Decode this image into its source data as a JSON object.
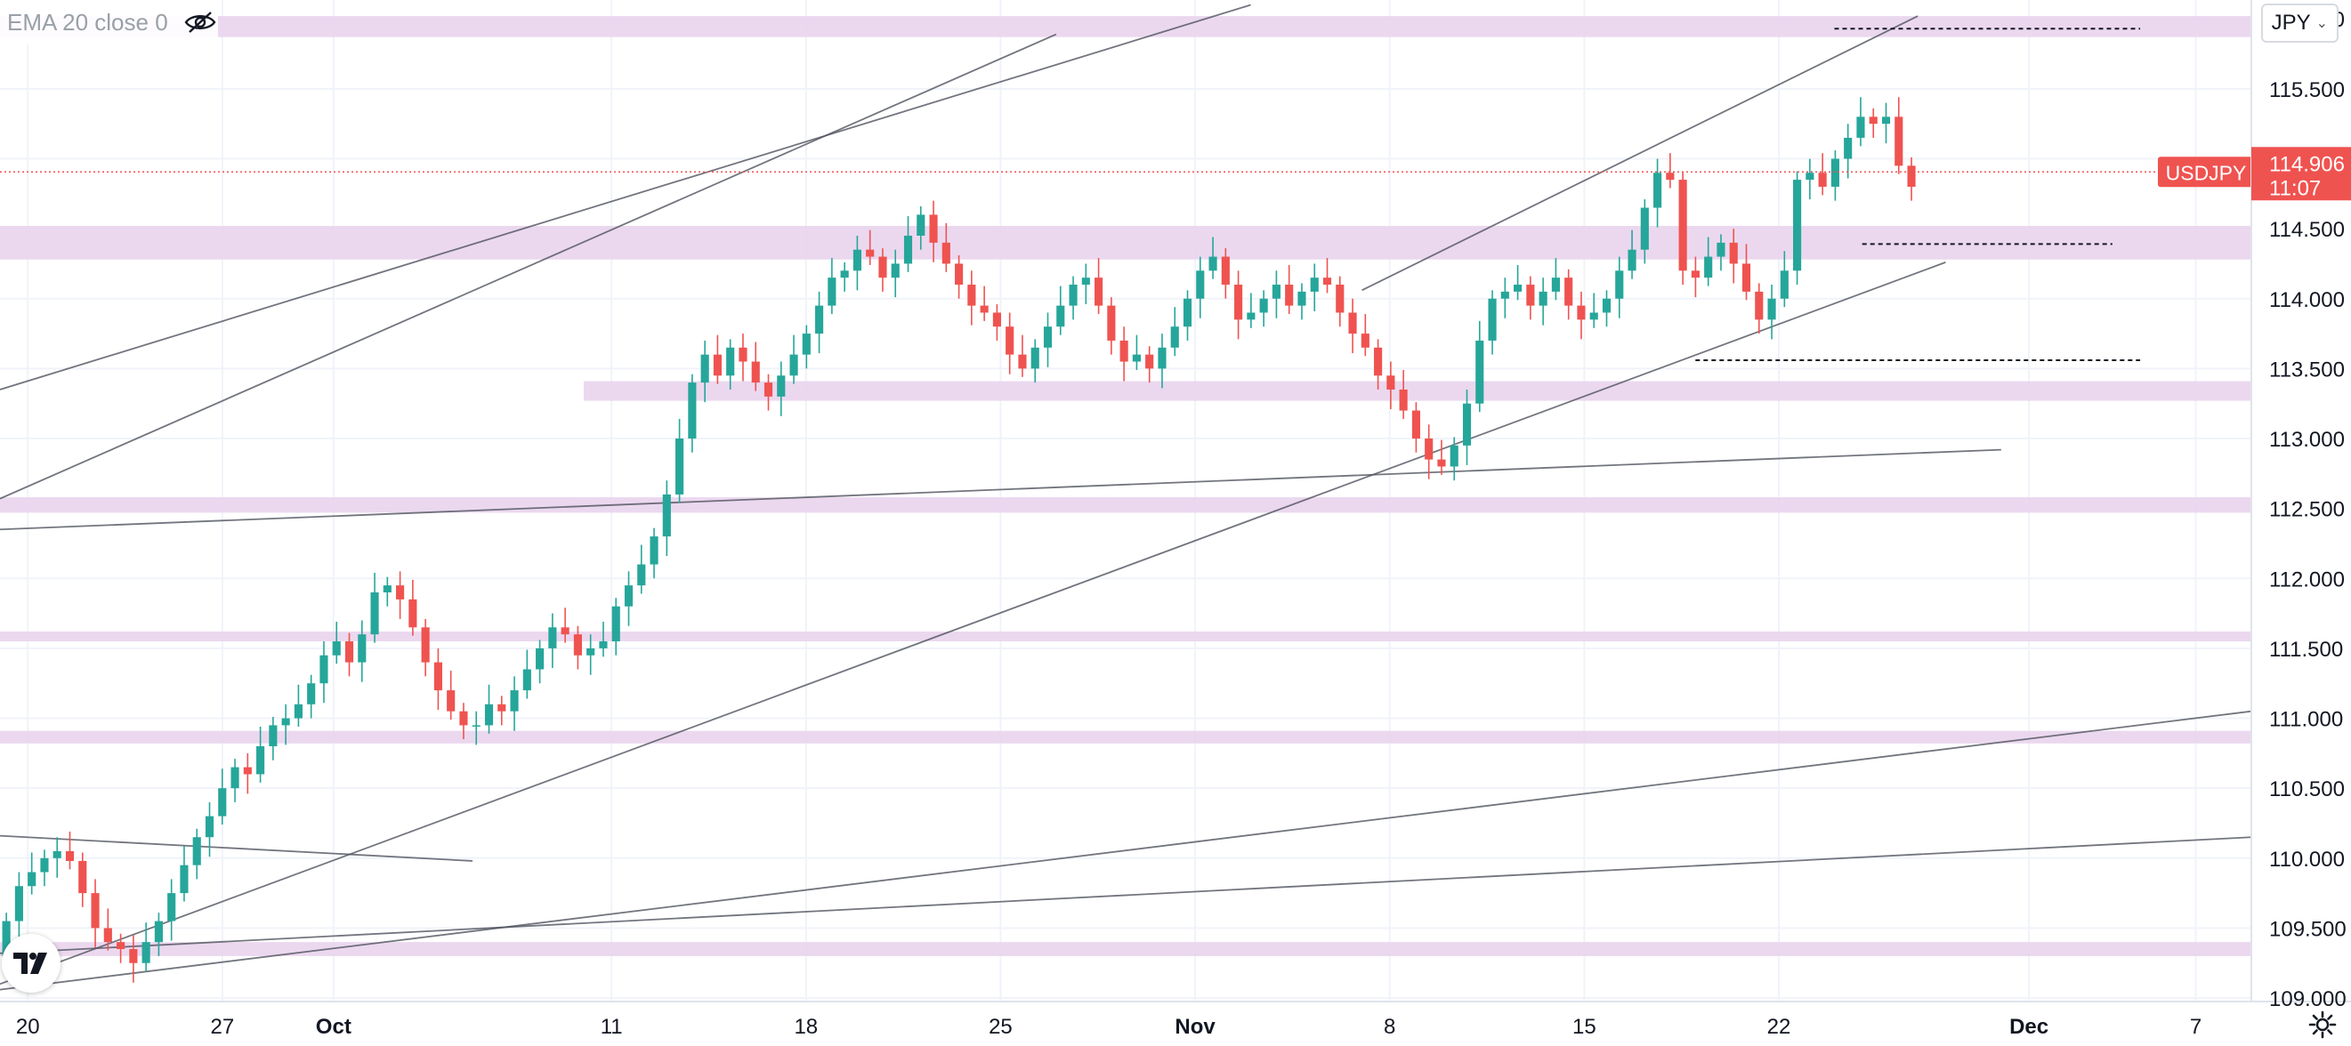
{
  "indicator": {
    "label": "EMA 20 close 0",
    "visibility_icon": "eye-off-icon"
  },
  "currency_button": {
    "label": "JPY",
    "icon": "chevron-down-icon"
  },
  "logo_icon": "tradingview-logo-icon",
  "settings_icon": "gear-icon",
  "colors": {
    "up": "#26a69a",
    "down": "#ef5350",
    "zone": "#e7d1ec",
    "trend": "#50535e",
    "grid": "#f0f3fa",
    "axis_text": "#131722"
  },
  "chart_data": {
    "type": "candlestick",
    "symbol": "USDJPY",
    "last_price": "114.906",
    "countdown": "11:07",
    "y_ticks": [
      "109.000",
      "109.500",
      "110.000",
      "110.500",
      "111.000",
      "111.500",
      "112.000",
      "112.500",
      "113.000",
      "113.500",
      "114.000",
      "114.500",
      "115.000",
      "115.500",
      "116.000"
    ],
    "ylim": [
      108.975,
      116.135
    ],
    "x_ticks": [
      {
        "label": "20",
        "date": "2021-09-20"
      },
      {
        "label": "27",
        "date": "2021-09-27"
      },
      {
        "label": "Oct",
        "date": "2021-10-01"
      },
      {
        "label": "11",
        "date": "2021-10-11"
      },
      {
        "label": "18",
        "date": "2021-10-18"
      },
      {
        "label": "25",
        "date": "2021-10-25"
      },
      {
        "label": "Nov",
        "date": "2021-11-01"
      },
      {
        "label": "8",
        "date": "2021-11-08"
      },
      {
        "label": "15",
        "date": "2021-11-15"
      },
      {
        "label": "22",
        "date": "2021-11-22"
      },
      {
        "label": "Dec",
        "date": "2021-12-01"
      },
      {
        "label": "7",
        "date": "2021-12-07"
      }
    ],
    "xlim": [
      "2021-09-19",
      "2021-12-09"
    ],
    "grid": true,
    "support_resistance_zones": [
      [
        115.87,
        116.02
      ],
      [
        114.28,
        114.52
      ],
      [
        113.27,
        113.41
      ],
      [
        112.47,
        112.58
      ],
      [
        111.55,
        111.62
      ],
      [
        110.82,
        110.91
      ],
      [
        109.3,
        109.4
      ]
    ],
    "zone_starts": {
      "113.27": "2021-10-10"
    },
    "trend_lines": [
      {
        "from": [
          "2021-09-19",
          112.57
        ],
        "to": [
          "2021-10-27",
          115.89
        ]
      },
      {
        "from": [
          "2021-09-19",
          113.35
        ],
        "to": [
          "2021-11-03",
          116.1
        ]
      },
      {
        "from": [
          "2021-09-19",
          109.1
        ],
        "to": [
          "2021-11-28",
          114.26
        ]
      },
      {
        "from": [
          "2021-11-07",
          114.06
        ],
        "to": [
          "2021-11-27",
          116.02
        ]
      },
      {
        "from": [
          "2021-09-19",
          112.35
        ],
        "to": [
          "2021-11-30",
          112.92
        ]
      },
      {
        "from": [
          "2021-09-19",
          109.06
        ],
        "to": [
          "2021-12-09",
          111.05
        ]
      },
      {
        "from": [
          "2021-09-19",
          109.32
        ],
        "to": [
          "2021-12-09",
          110.15
        ]
      },
      {
        "from": [
          "2021-09-19",
          110.16
        ],
        "to": [
          "2021-10-06",
          109.98
        ]
      }
    ],
    "dashed_levels": [
      {
        "price": 115.93,
        "from": "2021-11-24",
        "to": "2021-12-05"
      },
      {
        "price": 114.39,
        "from": "2021-11-25",
        "to": "2021-12-04"
      },
      {
        "price": 113.56,
        "from": "2021-11-19",
        "to": "2021-12-05"
      }
    ],
    "closes": [
      109.55,
      109.8,
      109.9,
      110.0,
      110.05,
      109.98,
      109.75,
      109.5,
      109.4,
      109.35,
      109.25,
      109.4,
      109.55,
      109.75,
      109.95,
      110.15,
      110.3,
      110.5,
      110.65,
      110.6,
      110.8,
      110.95,
      111.0,
      111.1,
      111.25,
      111.45,
      111.55,
      111.4,
      111.6,
      111.9,
      111.95,
      111.85,
      111.65,
      111.4,
      111.2,
      111.05,
      110.95,
      110.95,
      111.1,
      111.05,
      111.2,
      111.35,
      111.5,
      111.65,
      111.6,
      111.45,
      111.5,
      111.55,
      111.8,
      111.95,
      112.1,
      112.3,
      112.6,
      113.0,
      113.4,
      113.6,
      113.45,
      113.65,
      113.55,
      113.4,
      113.3,
      113.45,
      113.6,
      113.75,
      113.95,
      114.15,
      114.2,
      114.35,
      114.3,
      114.15,
      114.25,
      114.45,
      114.6,
      114.4,
      114.25,
      114.1,
      113.95,
      113.9,
      113.8,
      113.6,
      113.5,
      113.65,
      113.8,
      113.95,
      114.1,
      114.15,
      113.95,
      113.7,
      113.55,
      113.6,
      113.5,
      113.65,
      113.8,
      114.0,
      114.2,
      114.3,
      114.1,
      113.85,
      113.9,
      114.0,
      114.1,
      113.95,
      114.05,
      114.15,
      114.1,
      113.9,
      113.75,
      113.65,
      113.45,
      113.35,
      113.2,
      113.0,
      112.85,
      112.8,
      112.95,
      113.25,
      113.7,
      114.0,
      114.05,
      114.1,
      113.95,
      114.05,
      114.15,
      113.95,
      113.85,
      113.9,
      114.0,
      114.2,
      114.35,
      114.65,
      114.9,
      114.85,
      114.2,
      114.15,
      114.3,
      114.4,
      114.25,
      114.05,
      113.85,
      114.0,
      114.2,
      114.85,
      114.9,
      114.8,
      115.0,
      115.15,
      115.3,
      115.25,
      115.3,
      114.95,
      114.8
    ]
  }
}
